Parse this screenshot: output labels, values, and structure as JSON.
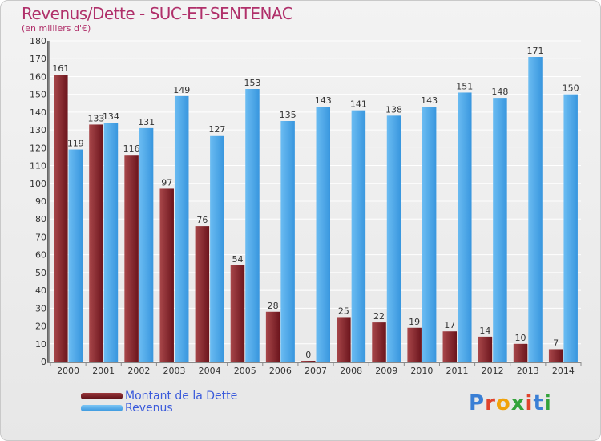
{
  "title": "Revenus/Dette - SUC-ET-SENTENAC",
  "subtitle": "(en milliers d'€)",
  "logo": {
    "text": "Proxiti",
    "letter_colors": [
      "#3a7fd5",
      "#e0432c",
      "#f0a20b",
      "#33a33a",
      "#e0432c",
      "#3a7fd5",
      "#33a33a"
    ]
  },
  "colors": {
    "debt": "#7a1e24",
    "debt_light": "#a8474a",
    "revenue": "#4aa5e8",
    "revenue_light": "#6bbcf2",
    "grid": "#ffffff"
  },
  "chart_data": {
    "type": "bar",
    "categories": [
      "2000",
      "2001",
      "2002",
      "2003",
      "2004",
      "2005",
      "2006",
      "2007",
      "2008",
      "2009",
      "2010",
      "2011",
      "2012",
      "2013",
      "2014"
    ],
    "series": [
      {
        "name": "Montant de la Dette",
        "values": [
          161,
          133,
          116,
          97,
          76,
          54,
          28,
          0,
          25,
          22,
          19,
          17,
          14,
          10,
          7
        ]
      },
      {
        "name": "Revenus",
        "values": [
          119,
          134,
          131,
          149,
          127,
          153,
          135,
          143,
          141,
          138,
          143,
          151,
          148,
          171,
          150
        ]
      }
    ],
    "ylim": [
      0,
      180
    ],
    "ystep": 10,
    "grid": true,
    "legend_position": "bottom-left"
  }
}
